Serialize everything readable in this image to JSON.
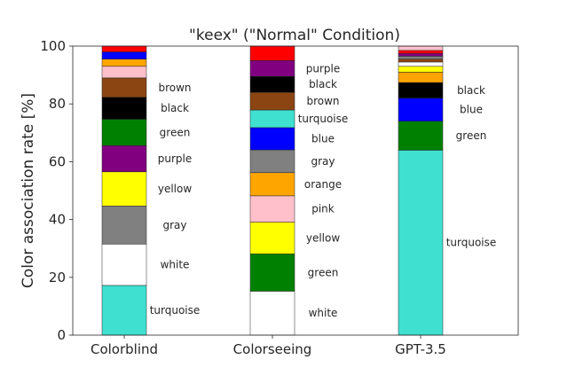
{
  "chart_data": {
    "type": "bar",
    "stacked": true,
    "title": "\"keex\" (\"Normal\" Condition)",
    "xlabel": "",
    "ylabel": "Color association rate [%]",
    "ylim": [
      0,
      100
    ],
    "yticks": [
      "0",
      "20",
      "40",
      "60",
      "80",
      "100"
    ],
    "grid": false,
    "legend": "none",
    "categories": [
      "Colorblind",
      "Colorseeing",
      "GPT-3.5"
    ],
    "stacks": [
      {
        "category": "Colorblind",
        "segments": [
          {
            "color_name": "turquoise",
            "value": 17.2,
            "color": "#40E0D0",
            "label": "turquoise"
          },
          {
            "color_name": "white",
            "value": 14.3,
            "color": "#FFFFFF",
            "label": "white"
          },
          {
            "color_name": "gray",
            "value": 13.2,
            "color": "#808080",
            "label": "gray"
          },
          {
            "color_name": "yellow",
            "value": 11.8,
            "color": "#FFFF00",
            "label": "yellow"
          },
          {
            "color_name": "purple",
            "value": 9.1,
            "color": "#800080",
            "label": "purple"
          },
          {
            "color_name": "green",
            "value": 9.1,
            "color": "#008000",
            "label": "green"
          },
          {
            "color_name": "black",
            "value": 7.6,
            "color": "#000000",
            "label": "black"
          },
          {
            "color_name": "brown",
            "value": 6.7,
            "color": "#8B4513",
            "label": "brown"
          },
          {
            "color_name": "pink",
            "value": 4.0,
            "color": "#FFC0CB",
            "label": ""
          },
          {
            "color_name": "orange",
            "value": 2.5,
            "color": "#FFA500",
            "label": ""
          },
          {
            "color_name": "blue",
            "value": 2.5,
            "color": "#0000FF",
            "label": ""
          },
          {
            "color_name": "red",
            "value": 2.0,
            "color": "#FF0000",
            "label": ""
          }
        ]
      },
      {
        "category": "Colorseeing",
        "segments": [
          {
            "color_name": "white",
            "value": 15.2,
            "color": "#FFFFFF",
            "label": "white"
          },
          {
            "color_name": "green",
            "value": 12.9,
            "color": "#008000",
            "label": "green"
          },
          {
            "color_name": "yellow",
            "value": 11.0,
            "color": "#FFFF00",
            "label": "yellow"
          },
          {
            "color_name": "pink",
            "value": 9.1,
            "color": "#FFC0CB",
            "label": "pink"
          },
          {
            "color_name": "orange",
            "value": 8.0,
            "color": "#FFA500",
            "label": "orange"
          },
          {
            "color_name": "gray",
            "value": 7.9,
            "color": "#808080",
            "label": "gray"
          },
          {
            "color_name": "blue",
            "value": 7.7,
            "color": "#0000FF",
            "label": "blue"
          },
          {
            "color_name": "turquoise",
            "value": 6.1,
            "color": "#40E0D0",
            "label": "turquoise"
          },
          {
            "color_name": "brown",
            "value": 6.1,
            "color": "#8B4513",
            "label": "brown"
          },
          {
            "color_name": "black",
            "value": 5.5,
            "color": "#000000",
            "label": "black"
          },
          {
            "color_name": "purple",
            "value": 5.5,
            "color": "#800080",
            "label": "purple"
          },
          {
            "color_name": "red",
            "value": 5.0,
            "color": "#FF0000",
            "label": ""
          }
        ]
      },
      {
        "category": "GPT-3.5",
        "segments": [
          {
            "color_name": "turquoise",
            "value": 64.0,
            "color": "#40E0D0",
            "label": "turquoise"
          },
          {
            "color_name": "green",
            "value": 10.0,
            "color": "#008000",
            "label": "green"
          },
          {
            "color_name": "blue",
            "value": 8.0,
            "color": "#0000FF",
            "label": "blue"
          },
          {
            "color_name": "black",
            "value": 5.4,
            "color": "#000000",
            "label": "black"
          },
          {
            "color_name": "orange",
            "value": 3.6,
            "color": "#FFA500",
            "label": ""
          },
          {
            "color_name": "yellow",
            "value": 2.0,
            "color": "#FFFF00",
            "label": ""
          },
          {
            "color_name": "white",
            "value": 1.5,
            "color": "#FFFFFF",
            "label": ""
          },
          {
            "color_name": "brown",
            "value": 1.0,
            "color": "#8B4513",
            "label": ""
          },
          {
            "color_name": "gray",
            "value": 1.0,
            "color": "#808080",
            "label": ""
          },
          {
            "color_name": "purple",
            "value": 1.0,
            "color": "#800080",
            "label": ""
          },
          {
            "color_name": "red",
            "value": 1.0,
            "color": "#FF0000",
            "label": ""
          },
          {
            "color_name": "pink",
            "value": 1.5,
            "color": "#FFC0CB",
            "label": ""
          }
        ]
      }
    ]
  }
}
